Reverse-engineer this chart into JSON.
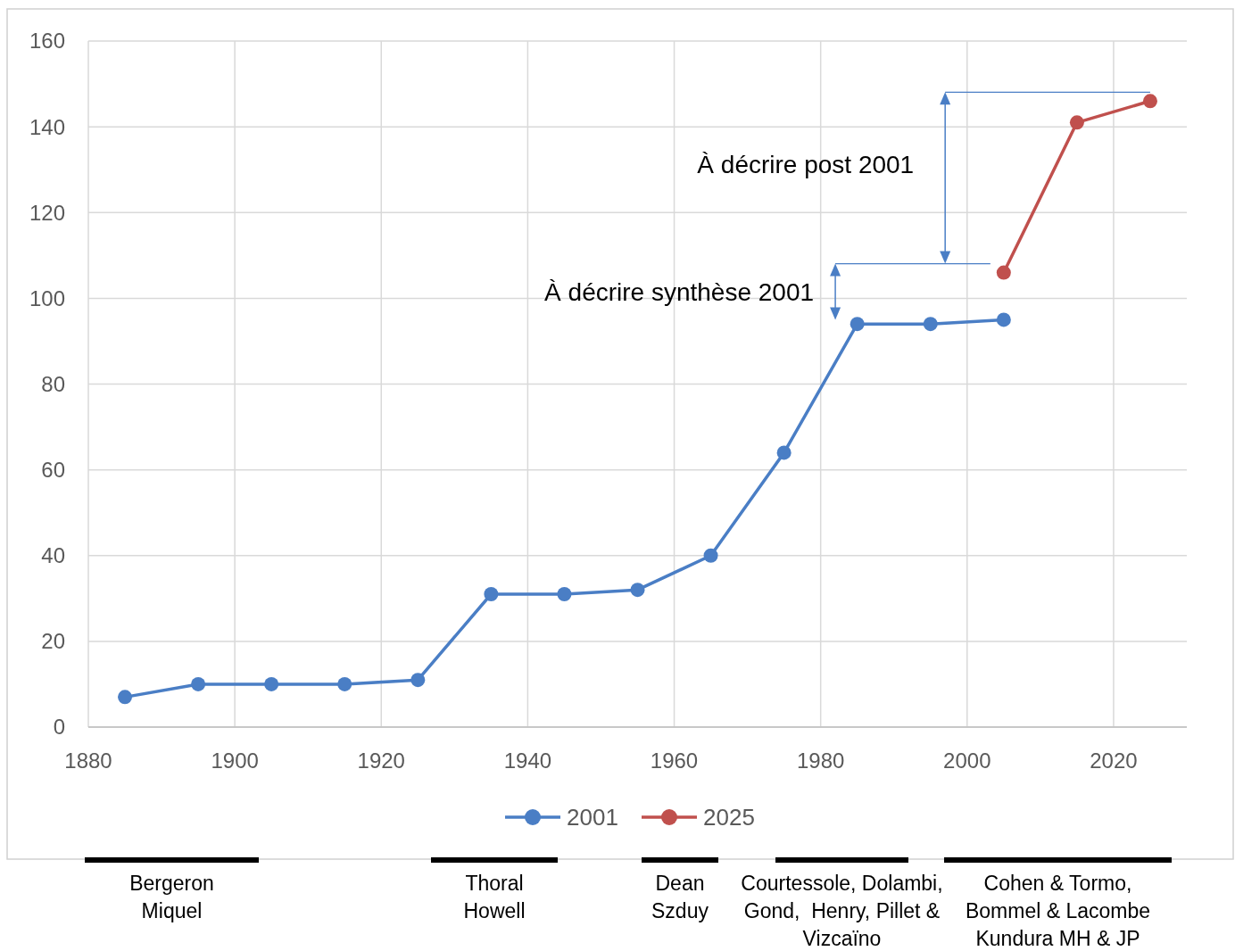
{
  "chart_data": {
    "type": "line",
    "xlim": [
      1880,
      2030
    ],
    "xticks": [
      1880,
      1900,
      1920,
      1940,
      1960,
      1980,
      2000,
      2020
    ],
    "ylim": [
      0,
      160
    ],
    "yticks": [
      0,
      20,
      40,
      60,
      80,
      100,
      120,
      140,
      160
    ],
    "grid": true,
    "legend": "bottom",
    "marker": "circle",
    "series": [
      {
        "name": "2001",
        "color": "#4a7ec5",
        "x": [
          1885,
          1895,
          1905,
          1915,
          1925,
          1935,
          1945,
          1955,
          1965,
          1975,
          1985,
          1995,
          2005
        ],
        "values": [
          7,
          10,
          10,
          10,
          11,
          31,
          31,
          32,
          40,
          64,
          94,
          94,
          95
        ]
      },
      {
        "name": "2025",
        "color": "#c0504d",
        "x": [
          2005,
          2015,
          2025
        ],
        "values": [
          106,
          141,
          146
        ]
      }
    ],
    "annotations": [
      "À décrire  post 2001",
      "À décrire  synthèse 2001",
      "Bergeron\nMiquel",
      "Thoral\nHowell",
      "Dean\nSzduy",
      "Courtessole, Dolambi,\nGond,  Henry, Pillet &\nVizcaïno",
      "Cohen & Tormo,\nBommel & Lacombe\nKundura MH & JP"
    ]
  }
}
